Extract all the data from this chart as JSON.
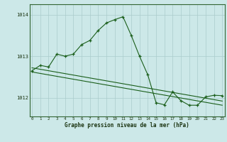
{
  "xlabel": "Graphe pression niveau de la mer (hPa)",
  "bg_color": "#cce8e8",
  "grid_color_major": "#aacccc",
  "grid_color_minor": "#bbdddd",
  "line_color": "#1a5e1a",
  "ylim": [
    1011.55,
    1014.25
  ],
  "xlim": [
    -0.3,
    23.3
  ],
  "yticks": [
    1012,
    1013,
    1014
  ],
  "xticks": [
    0,
    1,
    2,
    3,
    4,
    5,
    6,
    7,
    8,
    9,
    10,
    11,
    12,
    13,
    14,
    15,
    16,
    17,
    18,
    19,
    20,
    21,
    22,
    23
  ],
  "series1_x": [
    0,
    1,
    2,
    3,
    4,
    5,
    6,
    7,
    8,
    9,
    10,
    11,
    12,
    13,
    14,
    15,
    16,
    17,
    18,
    19,
    20,
    21,
    22,
    23
  ],
  "series1_y": [
    1012.65,
    1012.78,
    1012.74,
    1013.05,
    1013.0,
    1013.05,
    1013.28,
    1013.38,
    1013.62,
    1013.8,
    1013.88,
    1013.95,
    1013.5,
    1013.0,
    1012.55,
    1011.88,
    1011.83,
    1012.14,
    1011.93,
    1011.82,
    1011.82,
    1012.02,
    1012.06,
    1012.05
  ],
  "series2_x": [
    0,
    23
  ],
  "series2_y": [
    1012.72,
    1011.92
  ],
  "series3_x": [
    0,
    23
  ],
  "series3_y": [
    1012.62,
    1011.82
  ]
}
